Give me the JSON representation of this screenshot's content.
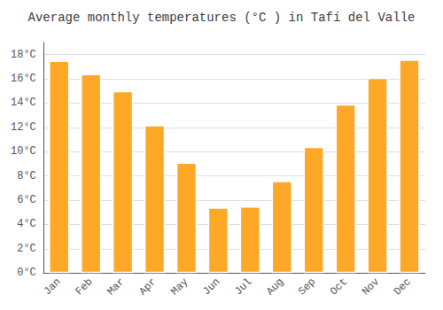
{
  "chart_data": {
    "type": "bar",
    "title": "Average monthly temperatures (°C ) in Tafí del Valle",
    "categories": [
      "Jan",
      "Feb",
      "Mar",
      "Apr",
      "May",
      "Jun",
      "Jul",
      "Aug",
      "Sep",
      "Oct",
      "Nov",
      "Dec"
    ],
    "values": [
      17.5,
      16.4,
      15.0,
      12.2,
      9.1,
      5.4,
      5.5,
      7.6,
      10.4,
      13.9,
      16.1,
      17.6
    ],
    "color": "#FFA726",
    "ylim": [
      0,
      19
    ],
    "yticks": [
      {
        "value": 0,
        "label": "0°C"
      },
      {
        "value": 2,
        "label": "2°C"
      },
      {
        "value": 4,
        "label": "4°C"
      },
      {
        "value": 6,
        "label": "6°C"
      },
      {
        "value": 8,
        "label": "8°C"
      },
      {
        "value": 10,
        "label": "10°C"
      },
      {
        "value": 12,
        "label": "12°C"
      },
      {
        "value": 14,
        "label": "14°C"
      },
      {
        "value": 16,
        "label": "16°C"
      },
      {
        "value": 18,
        "label": "18°C"
      }
    ],
    "grid": true
  }
}
